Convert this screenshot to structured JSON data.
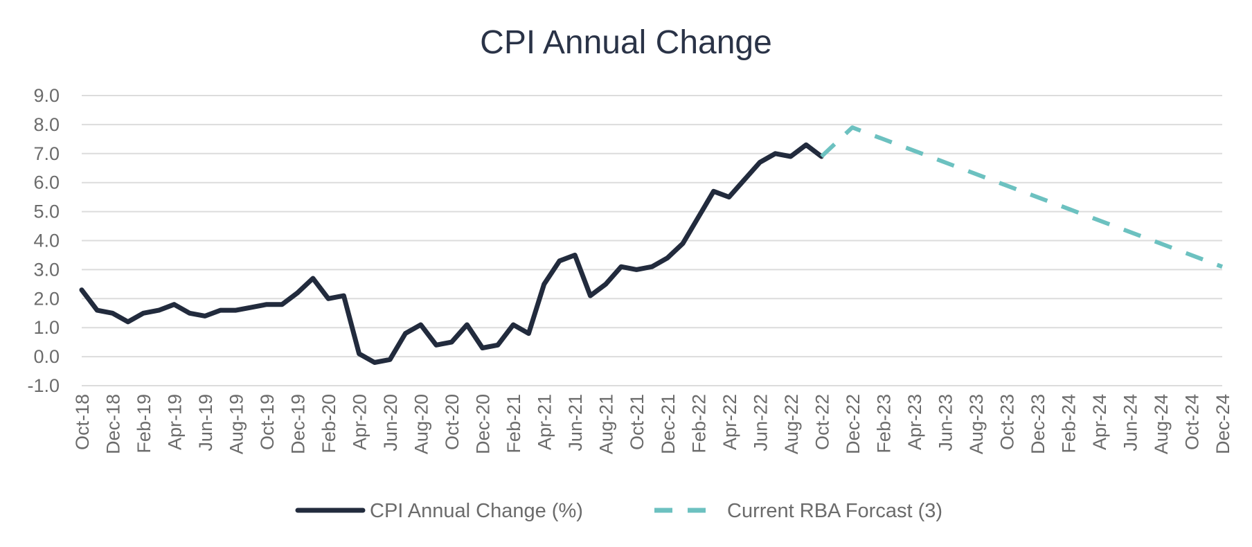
{
  "chart_data": {
    "type": "line",
    "title": "CPI Annual Change",
    "ylim": [
      -1.0,
      9.0
    ],
    "y_ticks": [
      "9.0",
      "8.0",
      "7.0",
      "6.0",
      "5.0",
      "4.0",
      "3.0",
      "2.0",
      "1.0",
      "0.0",
      "-1.0"
    ],
    "x_ticks": [
      "Oct-18",
      "Dec-18",
      "Feb-19",
      "Apr-19",
      "Jun-19",
      "Aug-19",
      "Oct-19",
      "Dec-19",
      "Feb-20",
      "Apr-20",
      "Jun-20",
      "Aug-20",
      "Oct-20",
      "Dec-20",
      "Feb-21",
      "Apr-21",
      "Jun-21",
      "Aug-21",
      "Oct-21",
      "Dec-21",
      "Feb-22",
      "Apr-22",
      "Jun-22",
      "Aug-22",
      "Oct-22",
      "Dec-22",
      "Feb-23",
      "Apr-23",
      "Jun-23",
      "Aug-23",
      "Oct-23",
      "Dec-23",
      "Feb-24",
      "Apr-24",
      "Jun-24",
      "Aug-24",
      "Oct-24",
      "Dec-24"
    ],
    "grid": true,
    "legend_position": "bottom",
    "series": [
      {
        "name": "CPI Annual Change (%)",
        "color": "#222b3d",
        "style": "solid",
        "x": [
          "Oct-18",
          "Nov-18",
          "Dec-18",
          "Jan-19",
          "Feb-19",
          "Mar-19",
          "Apr-19",
          "May-19",
          "Jun-19",
          "Jul-19",
          "Aug-19",
          "Sep-19",
          "Oct-19",
          "Nov-19",
          "Dec-19",
          "Jan-20",
          "Feb-20",
          "Mar-20",
          "Apr-20",
          "May-20",
          "Jun-20",
          "Jul-20",
          "Aug-20",
          "Sep-20",
          "Oct-20",
          "Nov-20",
          "Dec-20",
          "Jan-21",
          "Feb-21",
          "Mar-21",
          "Apr-21",
          "May-21",
          "Jun-21",
          "Jul-21",
          "Aug-21",
          "Sep-21",
          "Oct-21",
          "Nov-21",
          "Dec-21",
          "Jan-22",
          "Feb-22",
          "Mar-22",
          "Apr-22",
          "May-22",
          "Jun-22",
          "Jul-22",
          "Aug-22",
          "Sep-22",
          "Oct-22"
        ],
        "values": [
          2.3,
          1.6,
          1.5,
          1.2,
          1.5,
          1.6,
          1.8,
          1.5,
          1.4,
          1.6,
          1.6,
          1.7,
          1.8,
          1.8,
          2.2,
          2.7,
          2.0,
          2.1,
          0.1,
          -0.2,
          -0.1,
          0.8,
          1.1,
          0.4,
          0.5,
          1.1,
          0.3,
          0.4,
          1.1,
          0.8,
          2.5,
          3.3,
          3.5,
          2.1,
          2.5,
          3.1,
          3.0,
          3.1,
          3.4,
          3.9,
          4.8,
          5.7,
          5.5,
          6.1,
          6.7,
          7.0,
          6.9,
          7.3,
          6.9
        ]
      },
      {
        "name": "Current RBA Forcast (3)",
        "color": "#6cc1c0",
        "style": "dashed",
        "x": [
          "Oct-22",
          "Dec-22",
          "Dec-24"
        ],
        "values": [
          6.9,
          7.9,
          3.1
        ]
      }
    ]
  }
}
